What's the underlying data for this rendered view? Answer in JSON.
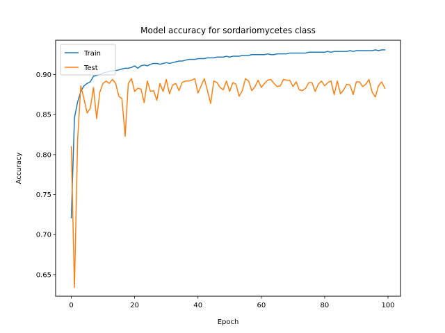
{
  "chart_data": {
    "type": "line",
    "title": "Model accuracy for sordariomycetes class",
    "xlabel": "Epoch",
    "ylabel": "Accuracy",
    "xlim": [
      -4.95,
      103.95
    ],
    "ylim": [
      0.623,
      0.943
    ],
    "xticks": [
      0,
      20,
      40,
      60,
      80,
      100
    ],
    "yticks": [
      0.65,
      0.7,
      0.75,
      0.8,
      0.85,
      0.9
    ],
    "ytick_labels": [
      "0.65",
      "0.70",
      "0.75",
      "0.80",
      "0.85",
      "0.90"
    ],
    "grid": false,
    "legend": "upper left",
    "series": [
      {
        "name": "Train",
        "color": "#1f77b4",
        "values": [
          0.721,
          0.846,
          0.866,
          0.879,
          0.886,
          0.889,
          0.891,
          0.898,
          0.899,
          0.9,
          0.902,
          0.903,
          0.904,
          0.905,
          0.905,
          0.906,
          0.907,
          0.908,
          0.908,
          0.909,
          0.911,
          0.908,
          0.911,
          0.912,
          0.911,
          0.913,
          0.914,
          0.914,
          0.913,
          0.914,
          0.915,
          0.914,
          0.915,
          0.916,
          0.917,
          0.917,
          0.918,
          0.919,
          0.919,
          0.919,
          0.92,
          0.92,
          0.92,
          0.921,
          0.921,
          0.921,
          0.922,
          0.922,
          0.922,
          0.923,
          0.922,
          0.923,
          0.923,
          0.923,
          0.924,
          0.924,
          0.924,
          0.925,
          0.925,
          0.925,
          0.925,
          0.925,
          0.926,
          0.925,
          0.925,
          0.926,
          0.926,
          0.926,
          0.926,
          0.927,
          0.927,
          0.927,
          0.927,
          0.927,
          0.927,
          0.928,
          0.928,
          0.928,
          0.928,
          0.928,
          0.928,
          0.929,
          0.928,
          0.929,
          0.929,
          0.929,
          0.929,
          0.929,
          0.93,
          0.929,
          0.93,
          0.93,
          0.93,
          0.93,
          0.93,
          0.93,
          0.931,
          0.93,
          0.931,
          0.931
        ]
      },
      {
        "name": "Test",
        "color": "#ff7f0e",
        "values": [
          0.81,
          0.634,
          0.819,
          0.886,
          0.87,
          0.852,
          0.858,
          0.884,
          0.845,
          0.878,
          0.889,
          0.892,
          0.889,
          0.894,
          0.889,
          0.873,
          0.87,
          0.823,
          0.889,
          0.895,
          0.879,
          0.883,
          0.882,
          0.865,
          0.892,
          0.879,
          0.88,
          0.868,
          0.889,
          0.879,
          0.894,
          0.876,
          0.887,
          0.889,
          0.88,
          0.89,
          0.892,
          0.892,
          0.893,
          0.895,
          0.877,
          0.886,
          0.895,
          0.88,
          0.864,
          0.892,
          0.89,
          0.884,
          0.881,
          0.892,
          0.879,
          0.89,
          0.888,
          0.873,
          0.88,
          0.895,
          0.892,
          0.88,
          0.885,
          0.893,
          0.884,
          0.889,
          0.893,
          0.894,
          0.889,
          0.885,
          0.886,
          0.894,
          0.893,
          0.893,
          0.885,
          0.891,
          0.881,
          0.88,
          0.883,
          0.89,
          0.89,
          0.879,
          0.888,
          0.892,
          0.886,
          0.89,
          0.892,
          0.875,
          0.892,
          0.876,
          0.881,
          0.888,
          0.887,
          0.875,
          0.891,
          0.891,
          0.885,
          0.888,
          0.894,
          0.878,
          0.872,
          0.886,
          0.891,
          0.883
        ]
      }
    ]
  }
}
